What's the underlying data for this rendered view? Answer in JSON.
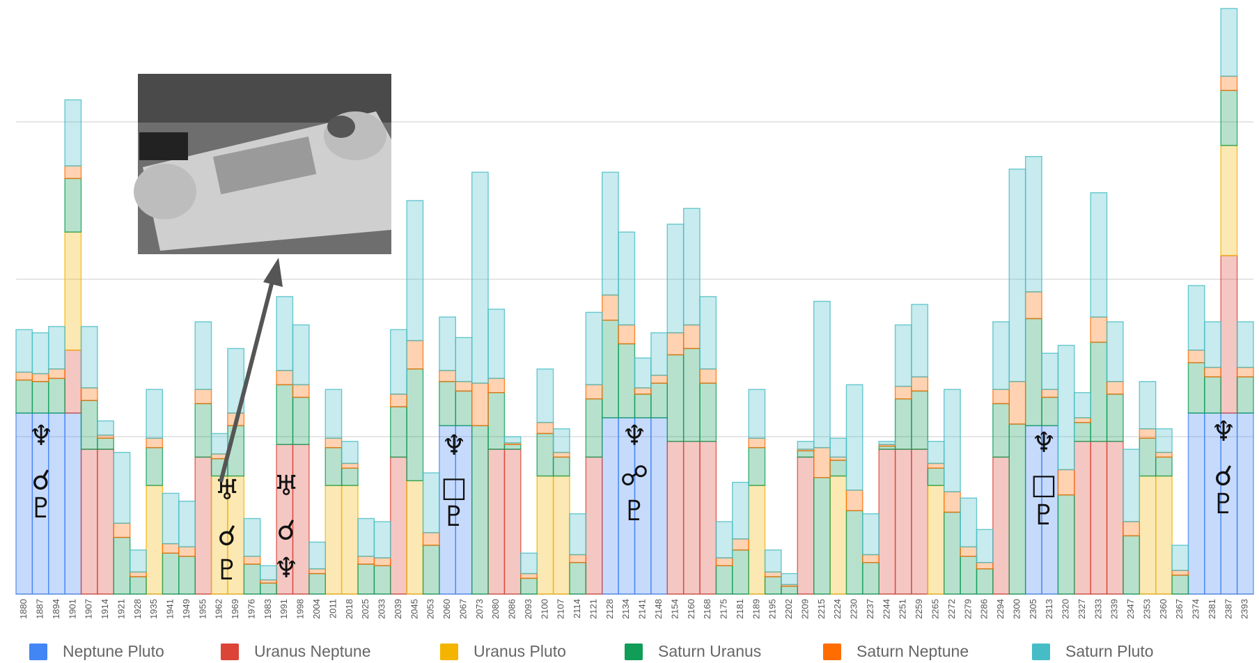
{
  "chart_data": {
    "type": "stacked-step-area",
    "categories": [
      "1880",
      "1887",
      "1894",
      "1901",
      "1907",
      "1914",
      "1921",
      "1928",
      "1935",
      "1941",
      "1949",
      "1955",
      "1962",
      "1969",
      "1976",
      "1983",
      "1991",
      "1998",
      "2004",
      "2011",
      "2018",
      "2025",
      "2033",
      "2039",
      "2045",
      "2053",
      "2060",
      "2067",
      "2073",
      "2080",
      "2086",
      "2093",
      "2100",
      "2107",
      "2114",
      "2121",
      "2128",
      "2134",
      "2141",
      "2148",
      "2154",
      "2160",
      "2168",
      "2175",
      "2181",
      "2189",
      "2195",
      "2202",
      "2209",
      "2215",
      "2224",
      "2230",
      "2237",
      "2244",
      "2251",
      "2259",
      "2265",
      "2272",
      "2279",
      "2286",
      "2294",
      "2300",
      "2305",
      "2313",
      "2320",
      "2327",
      "2333",
      "2339",
      "2347",
      "2353",
      "2360",
      "2367",
      "2374",
      "2381",
      "2387",
      "2393"
    ],
    "series": [
      {
        "name": "Neptune Pluto",
        "color": "#4285f4",
        "values": [
          1.15,
          1.15,
          1.15,
          1.15,
          0,
          0,
          0,
          0,
          0,
          0,
          0,
          0,
          0,
          0,
          0,
          0,
          0,
          0,
          0,
          0,
          0,
          0,
          0,
          0,
          0,
          0,
          1.07,
          1.07,
          0,
          0,
          0,
          0,
          0,
          0,
          0,
          0,
          1.12,
          1.12,
          1.12,
          1.12,
          0,
          0,
          0,
          0,
          0,
          0,
          0,
          0,
          0,
          0,
          0,
          0,
          0,
          0,
          0,
          0,
          0,
          0,
          0,
          0,
          0,
          0,
          1.07,
          1.07,
          0,
          0,
          0,
          0,
          0,
          0,
          0,
          0,
          1.15,
          1.15,
          1.15,
          1.15
        ]
      },
      {
        "name": "Uranus Neptune",
        "color": "#db4437",
        "values": [
          0,
          0,
          0,
          0.4,
          0.92,
          0.92,
          0,
          0,
          0,
          0,
          0,
          0.87,
          0,
          0,
          0,
          0,
          0.95,
          0.95,
          0,
          0,
          0,
          0,
          0,
          0.87,
          0,
          0,
          0,
          0,
          0,
          0.92,
          0.92,
          0,
          0,
          0,
          0,
          0.87,
          0,
          0,
          0,
          0,
          0.97,
          0.97,
          0.97,
          0,
          0,
          0,
          0,
          0,
          0.87,
          0,
          0,
          0,
          0,
          0.92,
          0.92,
          0.92,
          0,
          0,
          0,
          0,
          0.87,
          0,
          0,
          0,
          0,
          0.97,
          0.97,
          0.97,
          0,
          0,
          0,
          0,
          0,
          0,
          1.0,
          0
        ]
      },
      {
        "name": "Uranus Pluto",
        "color": "#f4b400",
        "values": [
          0,
          0,
          0,
          0.75,
          0,
          0,
          0,
          0,
          0.69,
          0,
          0,
          0,
          0.75,
          0.75,
          0,
          0,
          0,
          0,
          0,
          0.69,
          0.69,
          0,
          0,
          0,
          0.72,
          0,
          0,
          0,
          0,
          0,
          0,
          0,
          0.75,
          0.75,
          0,
          0,
          0,
          0,
          0,
          0,
          0,
          0,
          0,
          0,
          0,
          0.69,
          0,
          0,
          0,
          0,
          0.75,
          0,
          0,
          0,
          0,
          0,
          0.69,
          0,
          0,
          0,
          0,
          0,
          0,
          0,
          0,
          0,
          0,
          0,
          0,
          0.75,
          0.75,
          0,
          0,
          0,
          0.7,
          0
        ]
      },
      {
        "name": "Saturn Uranus",
        "color": "#0f9d58",
        "values": [
          0.21,
          0.2,
          0.22,
          0.34,
          0.31,
          0.07,
          0.36,
          0.11,
          0.24,
          0.26,
          0.24,
          0.34,
          0.11,
          0.32,
          0.19,
          0.07,
          0.38,
          0.3,
          0.13,
          0.24,
          0.11,
          0.19,
          0.18,
          0.32,
          0.71,
          0.31,
          0.28,
          0.22,
          1.07,
          0.36,
          0.03,
          0.1,
          0.27,
          0.12,
          0.2,
          0.37,
          0.62,
          0.47,
          0.15,
          0.22,
          0.55,
          0.59,
          0.37,
          0.18,
          0.28,
          0.24,
          0.11,
          0.05,
          0.04,
          0.74,
          0.1,
          0.53,
          0.2,
          0.02,
          0.32,
          0.37,
          0.11,
          0.52,
          0.24,
          0.16,
          0.34,
          1.08,
          0.68,
          0.18,
          0.63,
          0.12,
          0.63,
          0.3,
          0.37,
          0.24,
          0.12,
          0.12,
          0.32,
          0.23,
          0.35,
          0.23
        ]
      },
      {
        "name": "Saturn Neptune",
        "color": "#ff6d01",
        "values": [
          0.05,
          0.05,
          0.06,
          0.08,
          0.08,
          0.02,
          0.09,
          0.03,
          0.06,
          0.06,
          0.06,
          0.09,
          0.03,
          0.08,
          0.05,
          0.02,
          0.09,
          0.08,
          0.03,
          0.06,
          0.03,
          0.05,
          0.05,
          0.08,
          0.18,
          0.08,
          0.07,
          0.06,
          0.27,
          0.09,
          0.01,
          0.03,
          0.07,
          0.03,
          0.05,
          0.09,
          0.16,
          0.12,
          0.04,
          0.05,
          0.14,
          0.15,
          0.09,
          0.05,
          0.07,
          0.06,
          0.03,
          0.01,
          0.01,
          0.19,
          0.02,
          0.13,
          0.05,
          0.01,
          0.08,
          0.09,
          0.03,
          0.13,
          0.06,
          0.04,
          0.09,
          0.27,
          0.17,
          0.05,
          0.16,
          0.03,
          0.16,
          0.08,
          0.09,
          0.06,
          0.03,
          0.03,
          0.08,
          0.06,
          0.09,
          0.06
        ]
      },
      {
        "name": "Saturn Pluto",
        "color": "#46bdc6",
        "values": [
          0.27,
          0.26,
          0.27,
          0.42,
          0.39,
          0.09,
          0.45,
          0.14,
          0.31,
          0.32,
          0.29,
          0.43,
          0.13,
          0.41,
          0.24,
          0.09,
          0.47,
          0.38,
          0.17,
          0.31,
          0.14,
          0.24,
          0.23,
          0.41,
          0.89,
          0.38,
          0.34,
          0.28,
          1.34,
          0.44,
          0.04,
          0.13,
          0.34,
          0.15,
          0.26,
          0.46,
          0.78,
          0.59,
          0.19,
          0.27,
          0.69,
          0.74,
          0.46,
          0.23,
          0.36,
          0.31,
          0.14,
          0.07,
          0.05,
          0.93,
          0.12,
          0.67,
          0.26,
          0.02,
          0.39,
          0.46,
          0.14,
          0.65,
          0.31,
          0.21,
          0.43,
          1.35,
          0.86,
          0.23,
          0.79,
          0.16,
          0.79,
          0.38,
          0.46,
          0.3,
          0.15,
          0.16,
          0.41,
          0.29,
          0.43,
          0.29
        ]
      }
    ],
    "ylim": [
      0,
      3.75
    ],
    "yticks": [
      0,
      1,
      2,
      3
    ],
    "grid": true,
    "legend": "bottom",
    "annotations": [
      {
        "lines": [
          "♆",
          "☌",
          "♇"
        ]
      },
      {
        "lines": [
          "♅",
          "☌",
          "♇"
        ]
      },
      {
        "lines": [
          "♅",
          "☌",
          "♆"
        ]
      },
      {
        "lines": [
          "♆",
          "□",
          "♇"
        ]
      },
      {
        "lines": [
          "♆",
          "☍",
          "♇"
        ]
      },
      {
        "lines": [
          "♆",
          "□",
          "♇"
        ]
      },
      {
        "lines": [
          "♆",
          "☌",
          "♇"
        ]
      }
    ]
  }
}
